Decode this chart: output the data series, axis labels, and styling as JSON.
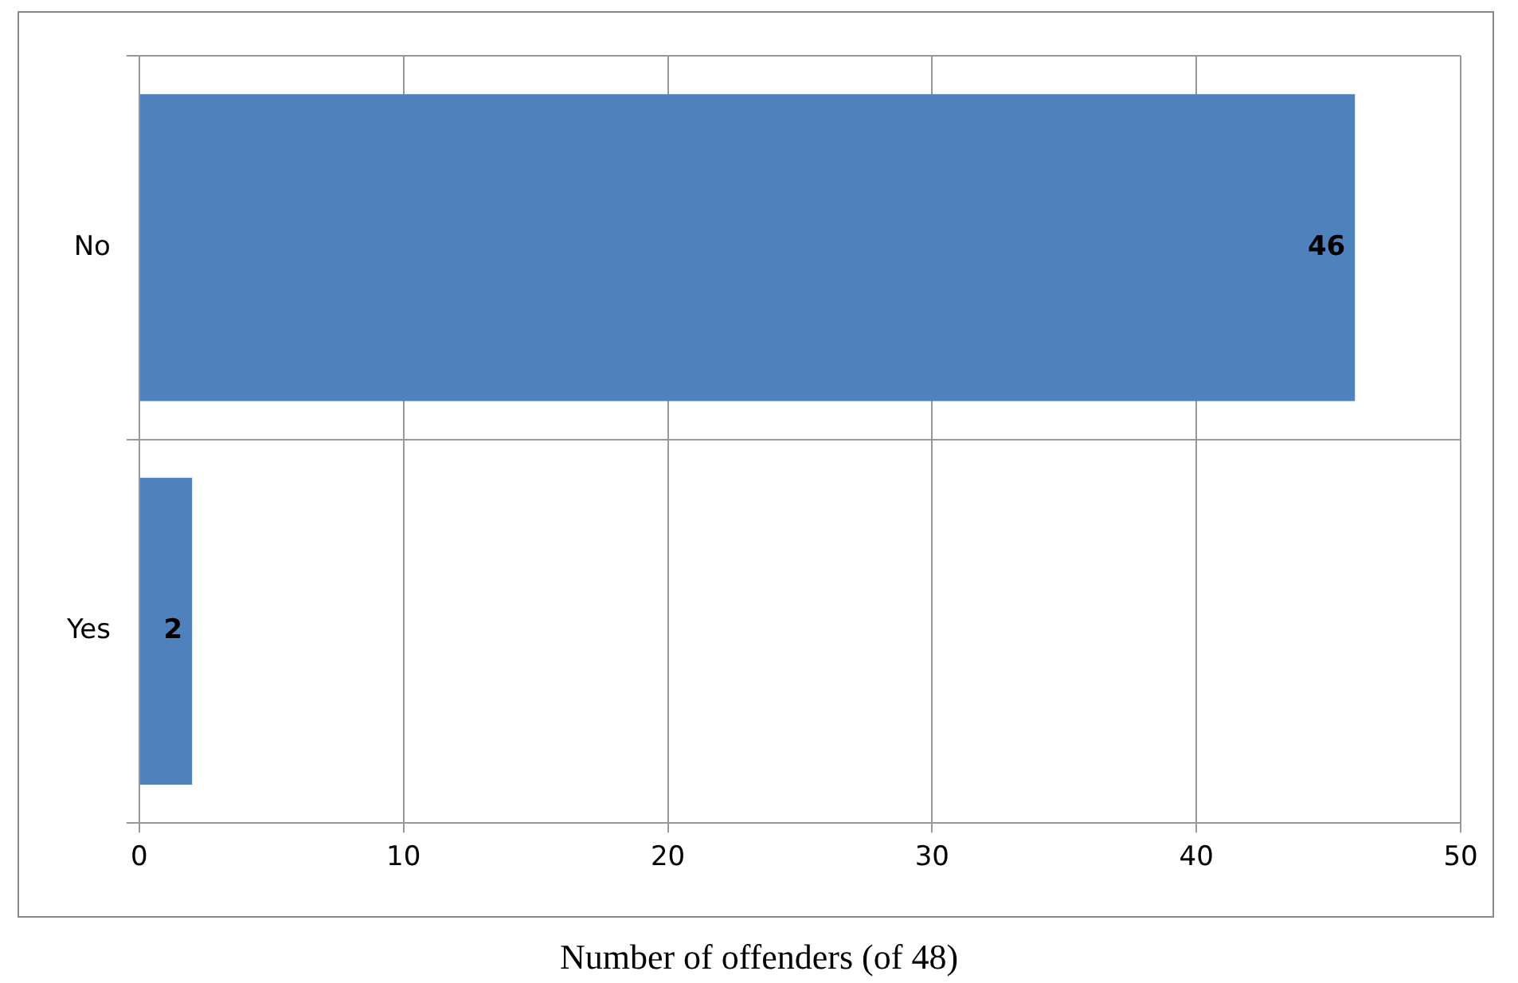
{
  "chart_data": {
    "type": "bar",
    "orientation": "horizontal",
    "xlabel": "Number of offenders (of 48)",
    "categories": [
      "No",
      "Yes"
    ],
    "values": [
      46,
      2
    ],
    "color": "#4f81bd",
    "xlim": [
      0,
      50
    ],
    "xticks": [
      0,
      10,
      20,
      30,
      40,
      50
    ],
    "grid": true,
    "data_labels": true
  }
}
